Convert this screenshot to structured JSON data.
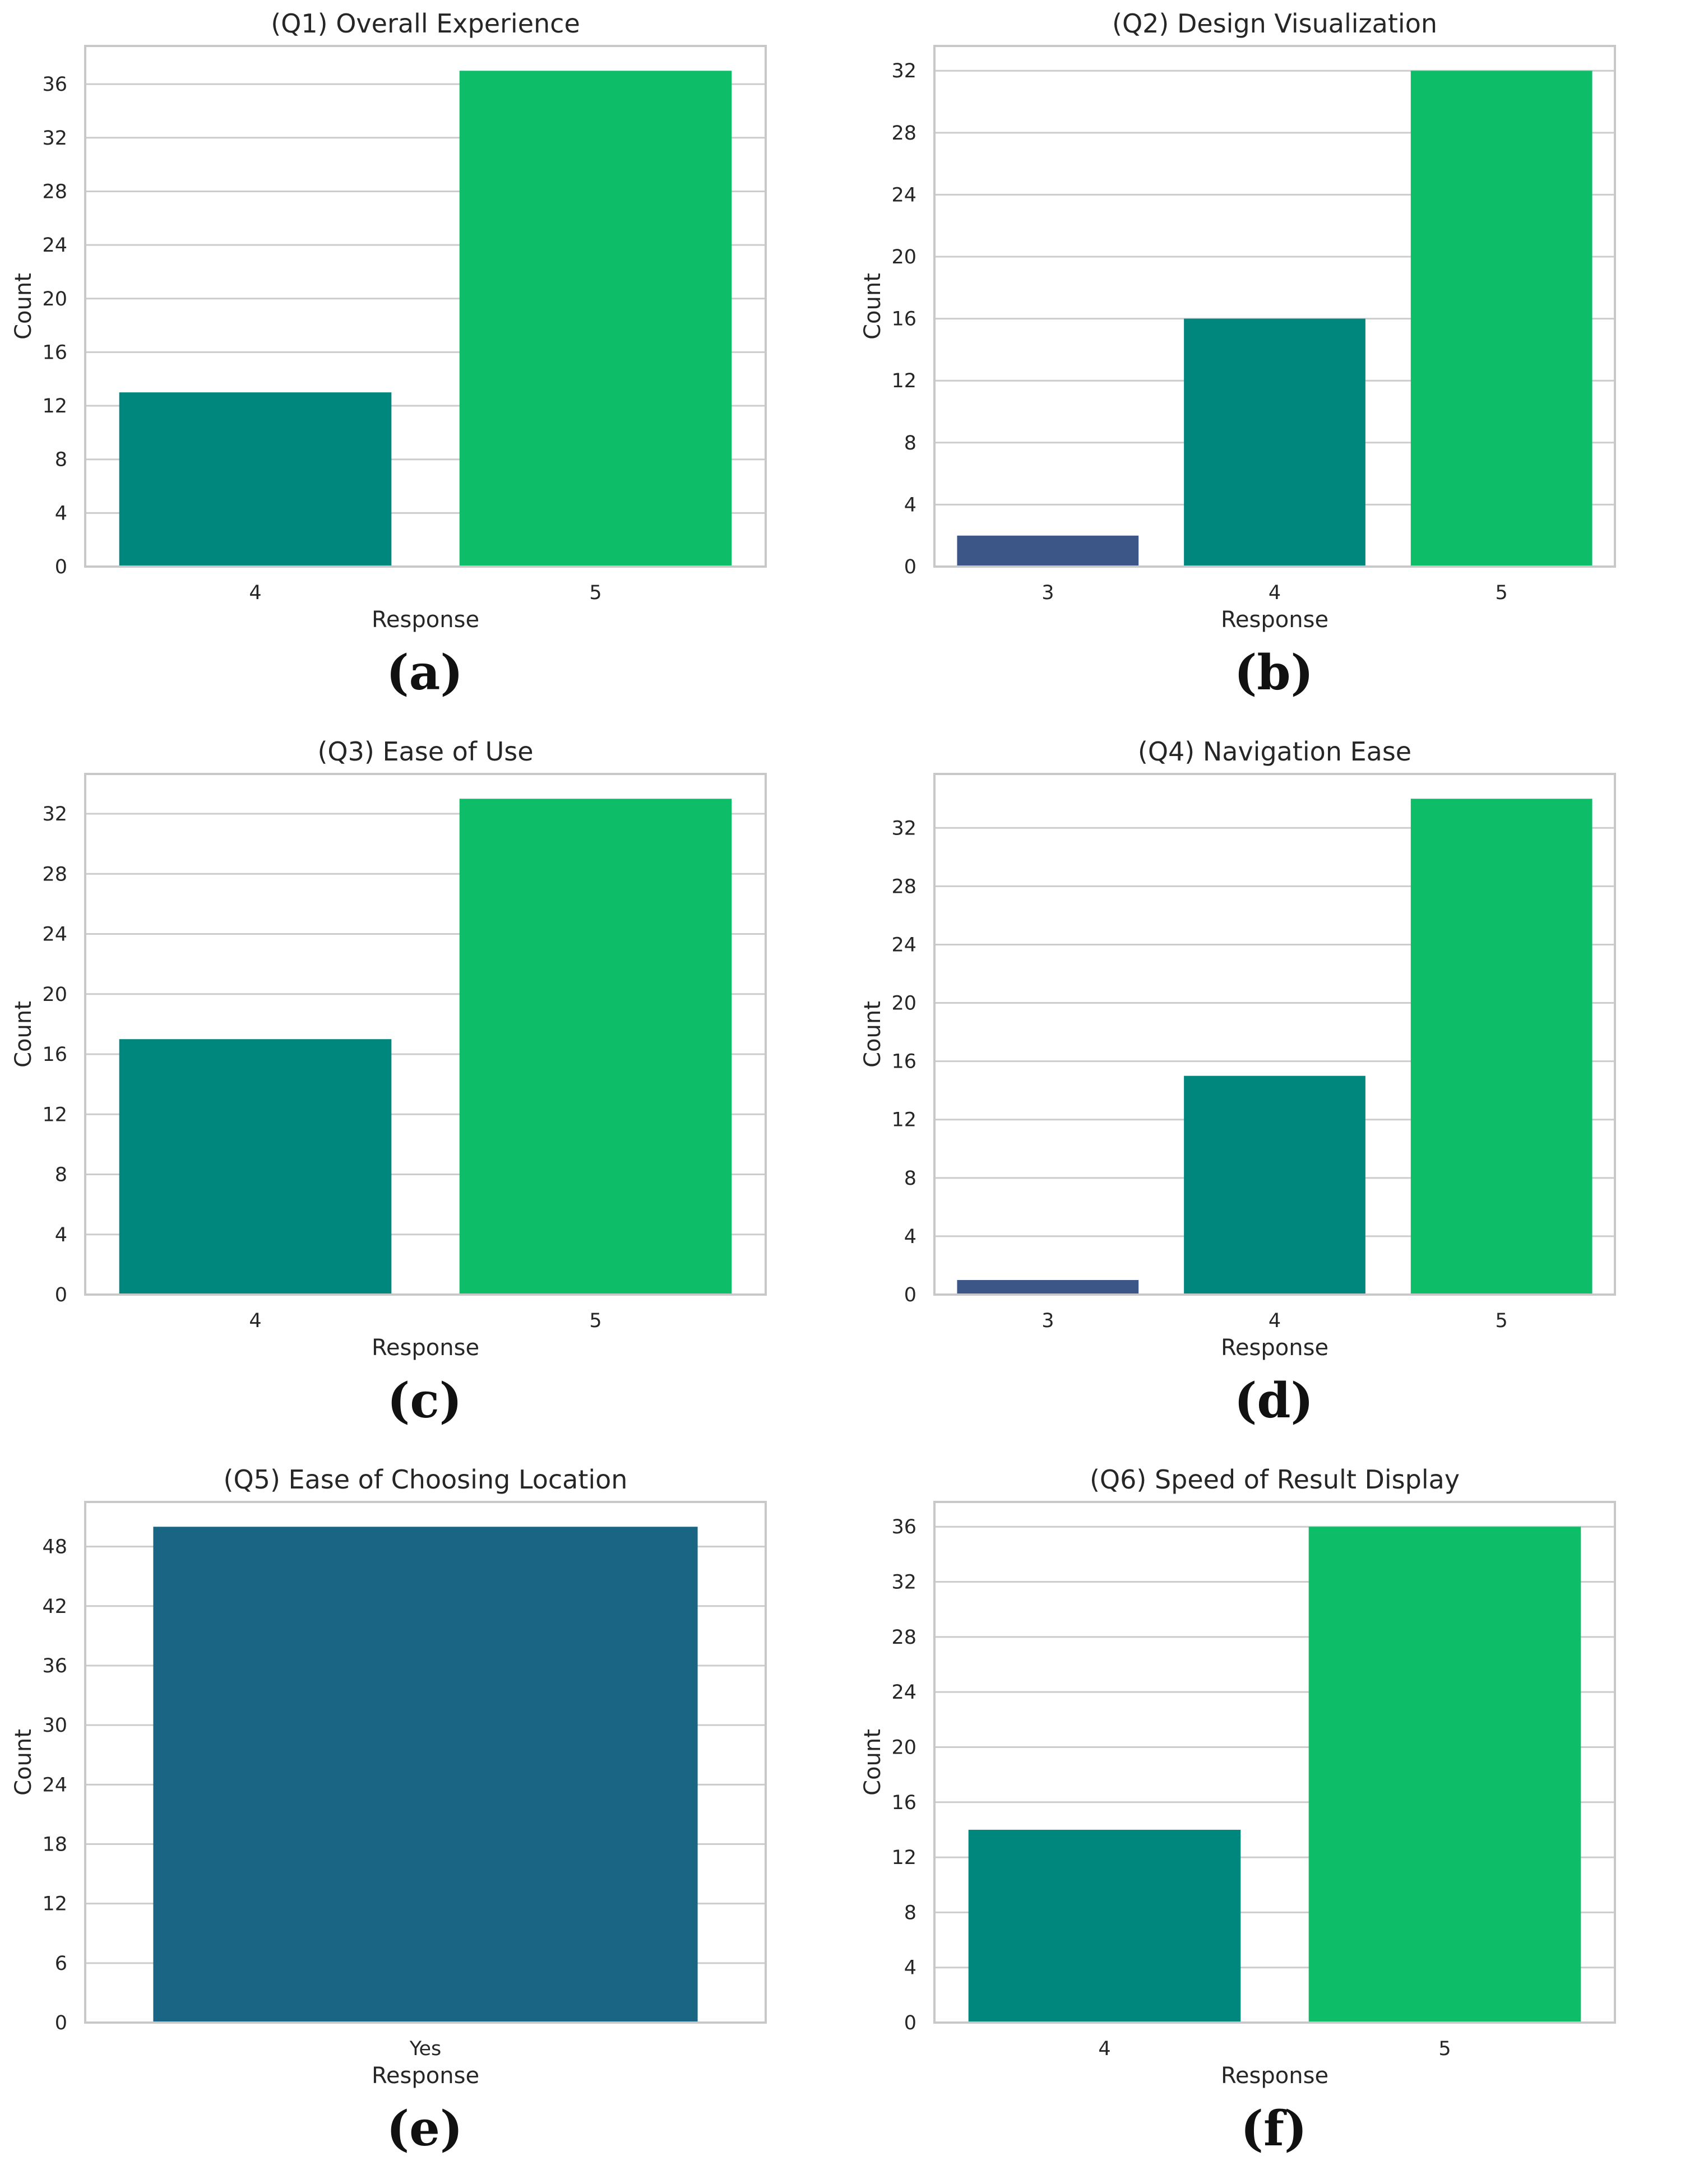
{
  "colors": {
    "grid": "#cccccc",
    "frame": "#c8c8c8",
    "bar_3": "#3b5687",
    "bar_4": "#00877d",
    "bar_5": "#0dbd68",
    "bar_yes": "#1a6584"
  },
  "chart_data": [
    {
      "panel_label": "(a)",
      "type": "bar",
      "title": "(Q1) Overall Experience",
      "xlabel": "Response",
      "ylabel": "Count",
      "categories": [
        "4",
        "5"
      ],
      "values": [
        13,
        37
      ],
      "bar_colors": [
        "#00877d",
        "#0dbd68"
      ],
      "yticks": [
        0,
        4,
        8,
        12,
        16,
        20,
        24,
        28,
        32,
        36
      ],
      "ylim": [
        0,
        38.85
      ],
      "grid": true
    },
    {
      "panel_label": "(b)",
      "type": "bar",
      "title": "(Q2) Design Visualization",
      "xlabel": "Response",
      "ylabel": "Count",
      "categories": [
        "3",
        "4",
        "5"
      ],
      "values": [
        2,
        16,
        32
      ],
      "bar_colors": [
        "#3b5687",
        "#00877d",
        "#0dbd68"
      ],
      "yticks": [
        0,
        4,
        8,
        12,
        16,
        20,
        24,
        28,
        32
      ],
      "ylim": [
        0,
        33.6
      ],
      "grid": true
    },
    {
      "panel_label": "(c)",
      "type": "bar",
      "title": "(Q3) Ease of Use",
      "xlabel": "Response",
      "ylabel": "Count",
      "categories": [
        "4",
        "5"
      ],
      "values": [
        17,
        33
      ],
      "bar_colors": [
        "#00877d",
        "#0dbd68"
      ],
      "yticks": [
        0,
        4,
        8,
        12,
        16,
        20,
        24,
        28,
        32
      ],
      "ylim": [
        0,
        34.65
      ],
      "grid": true
    },
    {
      "panel_label": "(d)",
      "type": "bar",
      "title": "(Q4) Navigation Ease",
      "xlabel": "Response",
      "ylabel": "Count",
      "categories": [
        "3",
        "4",
        "5"
      ],
      "values": [
        1,
        15,
        34
      ],
      "bar_colors": [
        "#3b5687",
        "#00877d",
        "#0dbd68"
      ],
      "yticks": [
        0,
        4,
        8,
        12,
        16,
        20,
        24,
        28,
        32
      ],
      "ylim": [
        0,
        35.7
      ],
      "grid": true
    },
    {
      "panel_label": "(e)",
      "type": "bar",
      "title": "(Q5) Ease of Choosing Location",
      "xlabel": "Response",
      "ylabel": "Count",
      "categories": [
        "Yes"
      ],
      "values": [
        50
      ],
      "bar_colors": [
        "#1a6584"
      ],
      "yticks": [
        0,
        6,
        12,
        18,
        24,
        30,
        36,
        42,
        48
      ],
      "ylim": [
        0,
        52.5
      ],
      "grid": true
    },
    {
      "panel_label": "(f)",
      "type": "bar",
      "title": "(Q6) Speed of Result Display",
      "xlabel": "Response",
      "ylabel": "Count",
      "categories": [
        "4",
        "5"
      ],
      "values": [
        14,
        36
      ],
      "bar_colors": [
        "#00877d",
        "#0dbd68"
      ],
      "yticks": [
        0,
        4,
        8,
        12,
        16,
        20,
        24,
        28,
        32,
        36
      ],
      "ylim": [
        0,
        37.8
      ],
      "grid": true
    }
  ]
}
